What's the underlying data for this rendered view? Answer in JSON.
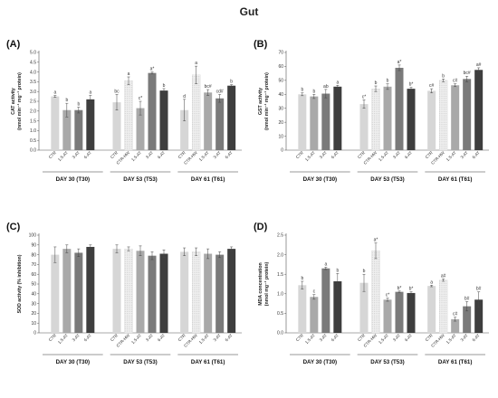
{
  "figure": {
    "title": "Gut"
  },
  "colors": {
    "CTR": "#d6d6d6",
    "CTR-HW": "#efefef",
    "1.5-AT": "#a9a9a9",
    "3-AT": "#7a7a7a",
    "6-AT": "#3e3e3e"
  },
  "chart_data": [
    {
      "type": "bar",
      "panel_label": "(A)",
      "ylabel_line1": "CAT activity",
      "ylabel_line2": "(nmol min⁻¹ mg⁻¹ protein)",
      "ylim": [
        0,
        5.0
      ],
      "yticks": [
        "0.0",
        "0.5",
        "1.0",
        "1.5",
        "2.0",
        "2.5",
        "3.0",
        "3.5",
        "4.0",
        "4.5",
        "5.0"
      ],
      "groups": [
        {
          "label": "DAY 30 (T30)",
          "bars": [
            {
              "category": "CTR",
              "value": 2.75,
              "error": 0.05,
              "sig": "a"
            },
            {
              "category": "1.5-AT",
              "value": 2.05,
              "error": 0.35,
              "sig": "b"
            },
            {
              "category": "3-AT",
              "value": 2.05,
              "error": 0.15,
              "sig": "b"
            },
            {
              "category": "6-AT",
              "value": 2.6,
              "error": 0.2,
              "sig": "a"
            }
          ]
        },
        {
          "label": "DAY 53 (T53)",
          "bars": [
            {
              "category": "CTR",
              "value": 2.45,
              "error": 0.4,
              "sig": "bc"
            },
            {
              "category": "CTR-HW",
              "value": 3.55,
              "error": 0.2,
              "sig": "a"
            },
            {
              "category": "1.5-AT",
              "value": 2.15,
              "error": 0.35,
              "sig": "c*"
            },
            {
              "category": "3-AT",
              "value": 3.95,
              "error": 0.05,
              "sig": "a*"
            },
            {
              "category": "6-AT",
              "value": 3.05,
              "error": 0.1,
              "sig": "b"
            }
          ]
        },
        {
          "label": "DAY 61 (T61)",
          "bars": [
            {
              "category": "CTR",
              "value": 2.05,
              "error": 0.55,
              "sig": "d"
            },
            {
              "category": "CTR-HW",
              "value": 3.85,
              "error": 0.45,
              "sig": "a"
            },
            {
              "category": "1.5-AT",
              "value": 2.95,
              "error": 0.15,
              "sig": "bc#"
            },
            {
              "category": "3-AT",
              "value": 2.65,
              "error": 0.2,
              "sig": "cd#"
            },
            {
              "category": "6-AT",
              "value": 3.3,
              "error": 0.05,
              "sig": "b"
            }
          ]
        }
      ]
    },
    {
      "type": "bar",
      "panel_label": "(B)",
      "ylabel_line1": "GST activity",
      "ylabel_line2": "(nmol min⁻¹ mg⁻¹ protein)",
      "ylim": [
        0,
        70
      ],
      "yticks": [
        "0",
        "10",
        "20",
        "30",
        "40",
        "50",
        "60",
        "70"
      ],
      "groups": [
        {
          "label": "DAY 30 (T30)",
          "bars": [
            {
              "category": "CTR",
              "value": 40,
              "error": 1,
              "sig": "b"
            },
            {
              "category": "1.5-AT",
              "value": 38.5,
              "error": 1.5,
              "sig": "b"
            },
            {
              "category": "3-AT",
              "value": 40.5,
              "error": 3,
              "sig": "ab"
            },
            {
              "category": "6-AT",
              "value": 45.5,
              "error": 1,
              "sig": "a"
            }
          ]
        },
        {
          "label": "DAY 53 (T53)",
          "bars": [
            {
              "category": "CTR",
              "value": 33,
              "error": 3,
              "sig": "c*"
            },
            {
              "category": "CTR-HW",
              "value": 44,
              "error": 2,
              "sig": "b"
            },
            {
              "category": "1.5-AT",
              "value": 45.5,
              "error": 2,
              "sig": "b"
            },
            {
              "category": "3-AT",
              "value": 59,
              "error": 2,
              "sig": "a*"
            },
            {
              "category": "6-AT",
              "value": 44,
              "error": 1,
              "sig": "b*"
            }
          ]
        },
        {
          "label": "DAY 61 (T61)",
          "bars": [
            {
              "category": "CTR",
              "value": 42.5,
              "error": 1.5,
              "sig": "c#"
            },
            {
              "category": "CTR-HW",
              "value": 50,
              "error": 1,
              "sig": "b"
            },
            {
              "category": "1.5-AT",
              "value": 46.5,
              "error": 1,
              "sig": "c#"
            },
            {
              "category": "3-AT",
              "value": 51,
              "error": 2,
              "sig": "bc#"
            },
            {
              "category": "6-AT",
              "value": 57.5,
              "error": 1.5,
              "sig": "a#"
            }
          ]
        }
      ]
    },
    {
      "type": "bar",
      "panel_label": "(C)",
      "ylabel_line1": "SOD activity (% inhibition)",
      "ylabel_line2": "",
      "ylim": [
        0,
        100
      ],
      "yticks": [
        "0",
        "10",
        "20",
        "30",
        "40",
        "50",
        "60",
        "70",
        "80",
        "90",
        "100"
      ],
      "groups": [
        {
          "label": "DAY 30 (T30)",
          "bars": [
            {
              "category": "CTR",
              "value": 80,
              "error": 8,
              "sig": ""
            },
            {
              "category": "1.5-AT",
              "value": 86,
              "error": 4,
              "sig": ""
            },
            {
              "category": "3-AT",
              "value": 82,
              "error": 4,
              "sig": ""
            },
            {
              "category": "6-AT",
              "value": 88,
              "error": 2,
              "sig": ""
            }
          ]
        },
        {
          "label": "DAY 53 (T53)",
          "bars": [
            {
              "category": "CTR",
              "value": 86,
              "error": 4,
              "sig": ""
            },
            {
              "category": "CTR-HW",
              "value": 86,
              "error": 2,
              "sig": ""
            },
            {
              "category": "1.5-AT",
              "value": 84,
              "error": 5,
              "sig": ""
            },
            {
              "category": "3-AT",
              "value": 79,
              "error": 4,
              "sig": ""
            },
            {
              "category": "6-AT",
              "value": 81,
              "error": 4,
              "sig": ""
            }
          ]
        },
        {
          "label": "DAY 61 (T61)",
          "bars": [
            {
              "category": "CTR",
              "value": 83,
              "error": 4,
              "sig": ""
            },
            {
              "category": "CTR-HW",
              "value": 83,
              "error": 4,
              "sig": ""
            },
            {
              "category": "1.5-AT",
              "value": 81,
              "error": 5,
              "sig": ""
            },
            {
              "category": "3-AT",
              "value": 80,
              "error": 3,
              "sig": ""
            },
            {
              "category": "6-AT",
              "value": 86,
              "error": 2,
              "sig": ""
            }
          ]
        }
      ]
    },
    {
      "type": "bar",
      "panel_label": "(D)",
      "ylabel_line1": "MDA concentration",
      "ylabel_line2": "(nmol mg⁻¹ protein)",
      "ylim": [
        0,
        2.5
      ],
      "yticks": [
        "0.0",
        "0.5",
        "1.0",
        "1.5",
        "2.0",
        "2.5"
      ],
      "groups": [
        {
          "label": "DAY 30 (T30)",
          "bars": [
            {
              "category": "CTR",
              "value": 1.22,
              "error": 0.1,
              "sig": "b"
            },
            {
              "category": "1.5-AT",
              "value": 0.92,
              "error": 0.06,
              "sig": "c"
            },
            {
              "category": "3-AT",
              "value": 1.65,
              "error": 0.03,
              "sig": "a"
            },
            {
              "category": "6-AT",
              "value": 1.32,
              "error": 0.2,
              "sig": "b"
            }
          ]
        },
        {
          "label": "DAY 53 (T53)",
          "bars": [
            {
              "category": "CTR",
              "value": 1.28,
              "error": 0.22,
              "sig": "b"
            },
            {
              "category": "CTR-HW",
              "value": 2.1,
              "error": 0.2,
              "sig": "a*"
            },
            {
              "category": "1.5-AT",
              "value": 0.85,
              "error": 0.04,
              "sig": "c*"
            },
            {
              "category": "3-AT",
              "value": 1.05,
              "error": 0.02,
              "sig": "b*"
            },
            {
              "category": "6-AT",
              "value": 1.02,
              "error": 0.03,
              "sig": "b*"
            }
          ]
        },
        {
          "label": "DAY 61 (T61)",
          "bars": [
            {
              "category": "CTR",
              "value": 1.2,
              "error": 0.02,
              "sig": "a"
            },
            {
              "category": "CTR-HW",
              "value": 1.35,
              "error": 0.03,
              "sig": "a#"
            },
            {
              "category": "1.5-AT",
              "value": 0.35,
              "error": 0.05,
              "sig": "c#"
            },
            {
              "category": "3-AT",
              "value": 0.68,
              "error": 0.12,
              "sig": "b#"
            },
            {
              "category": "6-AT",
              "value": 0.85,
              "error": 0.2,
              "sig": "b#"
            }
          ]
        }
      ]
    }
  ]
}
